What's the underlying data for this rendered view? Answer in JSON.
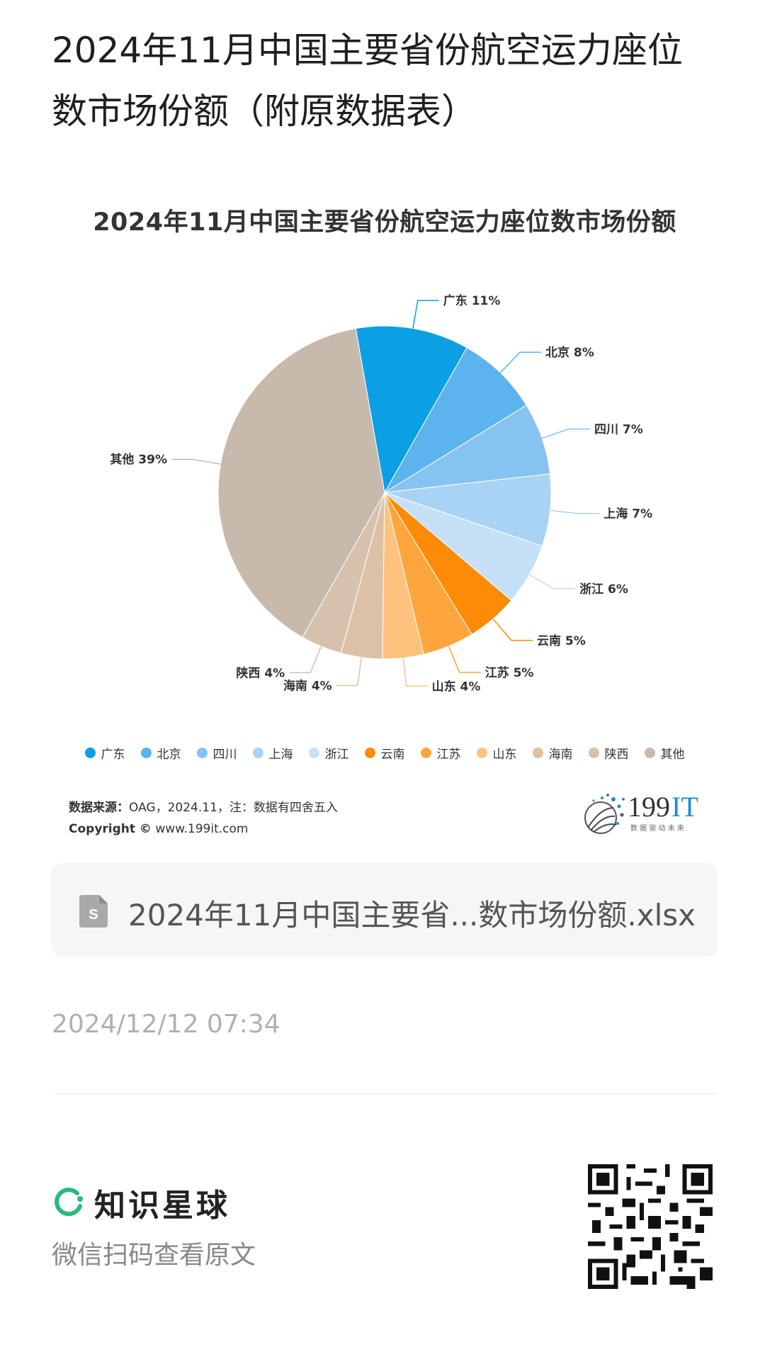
{
  "post": {
    "title": "2024年11月中国主要省份航空运力座位数市场份额（附原数据表）",
    "timestamp": "2024/12/12 07:34"
  },
  "chart": {
    "source_label": "数据来源：",
    "source_text": "OAG，2024.11，注：数据有四舍五入",
    "copyright_label": "Copyright ©",
    "copyright_text": "www.199it.com"
  },
  "chart_data": {
    "type": "pie",
    "title": "2024年11月中国主要省份航空运力座位数市场份额",
    "legend_position": "bottom",
    "slices": [
      {
        "label": "广东",
        "value": 11,
        "display": "广东 11%",
        "color": "#0b9fe3"
      },
      {
        "label": "北京",
        "value": 8,
        "display": "北京 8%",
        "color": "#5cb3ee"
      },
      {
        "label": "四川",
        "value": 7,
        "display": "四川 7%",
        "color": "#86c3f1"
      },
      {
        "label": "上海",
        "value": 7,
        "display": "上海 7%",
        "color": "#a8d3f4"
      },
      {
        "label": "浙江",
        "value": 6,
        "display": "浙江 6%",
        "color": "#c5e0f7"
      },
      {
        "label": "云南",
        "value": 5,
        "display": "云南 5%",
        "color": "#fd8b06"
      },
      {
        "label": "江苏",
        "value": 5,
        "display": "江苏 5%",
        "color": "#fea63d"
      },
      {
        "label": "山东",
        "value": 4,
        "display": "山东 4%",
        "color": "#fdc27e"
      },
      {
        "label": "海南",
        "value": 4,
        "display": "海南 4%",
        "color": "#dcc1a6"
      },
      {
        "label": "陕西",
        "value": 4,
        "display": "陕西 4%",
        "color": "#d6c1ad"
      },
      {
        "label": "其他",
        "value": 39,
        "display": "其他 39%",
        "color": "#c8b9ad"
      }
    ]
  },
  "logo": {
    "main": "199",
    "accent": "IT",
    "tagline": "数 据 驱 动 未 来"
  },
  "attachment": {
    "file_name": "2024年11月中国主要省...数市场份额.xlsx",
    "icon": "spreadsheet-file-icon"
  },
  "footer": {
    "brand_name": "知识星球",
    "hint": "微信扫码查看原文",
    "icon": "planet-logo-icon"
  },
  "colors": {
    "accent_green": "#2bb97d",
    "it_blue": "#1e88d8"
  }
}
